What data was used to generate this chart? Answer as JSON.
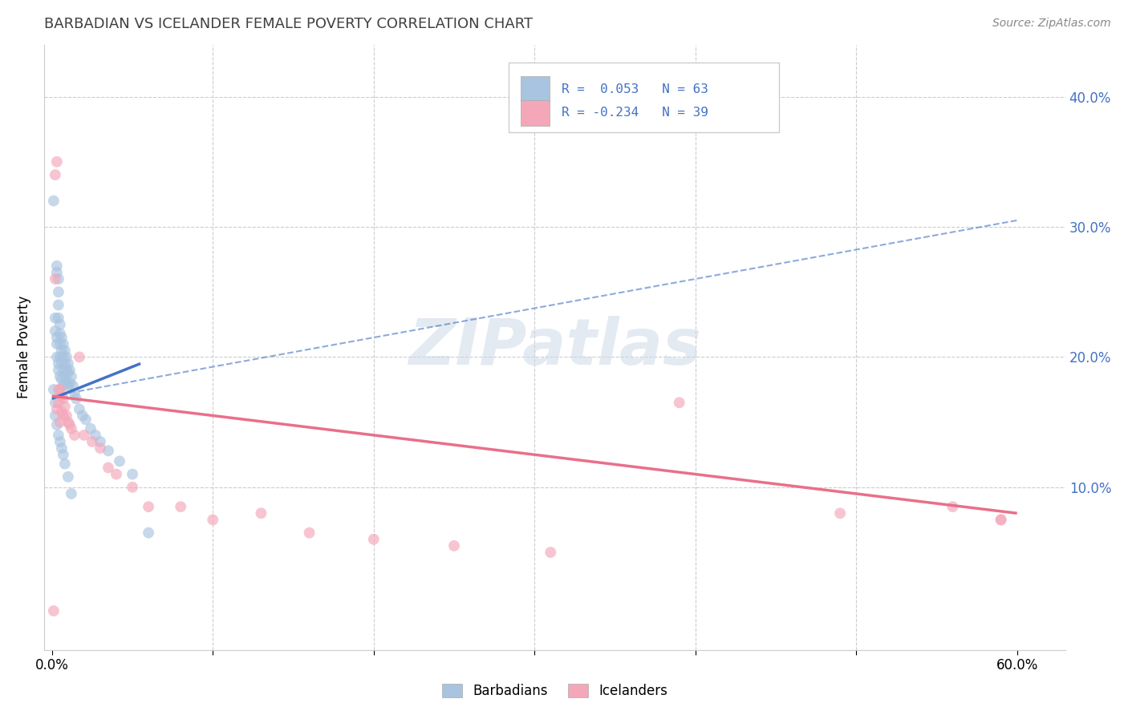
{
  "title": "BARBADIAN VS ICELANDER FEMALE POVERTY CORRELATION CHART",
  "source": "Source: ZipAtlas.com",
  "ylabel": "Female Poverty",
  "barbadian_color": "#a8c4e0",
  "icelander_color": "#f4a7b9",
  "barbadian_line_color": "#4472c4",
  "icelander_line_color": "#e8708a",
  "trend_dash_color": "#a8c4e0",
  "watermark_color": "#ccd9e8",
  "background_color": "#ffffff",
  "grid_color": "#cccccc",
  "title_color": "#404040",
  "axis_label_color": "#4472c4",
  "legend_label1": "Barbadians",
  "legend_label2": "Icelanders",
  "barbadian_x": [
    0.001,
    0.002,
    0.002,
    0.002,
    0.003,
    0.003,
    0.003,
    0.003,
    0.003,
    0.004,
    0.004,
    0.004,
    0.004,
    0.004,
    0.004,
    0.005,
    0.005,
    0.005,
    0.005,
    0.005,
    0.006,
    0.006,
    0.006,
    0.006,
    0.007,
    0.007,
    0.007,
    0.007,
    0.008,
    0.008,
    0.008,
    0.009,
    0.009,
    0.009,
    0.01,
    0.01,
    0.01,
    0.011,
    0.011,
    0.012,
    0.013,
    0.014,
    0.015,
    0.017,
    0.019,
    0.021,
    0.024,
    0.027,
    0.03,
    0.035,
    0.042,
    0.05,
    0.06,
    0.002,
    0.003,
    0.004,
    0.005,
    0.006,
    0.007,
    0.008,
    0.01,
    0.012,
    0.001
  ],
  "barbadian_y": [
    0.175,
    0.23,
    0.22,
    0.165,
    0.27,
    0.265,
    0.215,
    0.21,
    0.2,
    0.26,
    0.25,
    0.24,
    0.23,
    0.195,
    0.19,
    0.225,
    0.218,
    0.21,
    0.2,
    0.185,
    0.215,
    0.205,
    0.195,
    0.183,
    0.21,
    0.2,
    0.19,
    0.178,
    0.205,
    0.195,
    0.185,
    0.2,
    0.19,
    0.18,
    0.195,
    0.188,
    0.178,
    0.19,
    0.18,
    0.185,
    0.178,
    0.172,
    0.168,
    0.16,
    0.155,
    0.152,
    0.145,
    0.14,
    0.135,
    0.128,
    0.12,
    0.11,
    0.065,
    0.155,
    0.148,
    0.14,
    0.135,
    0.13,
    0.125,
    0.118,
    0.108,
    0.095,
    0.32
  ],
  "icelander_x": [
    0.001,
    0.002,
    0.003,
    0.003,
    0.004,
    0.004,
    0.005,
    0.005,
    0.006,
    0.006,
    0.007,
    0.007,
    0.008,
    0.009,
    0.01,
    0.011,
    0.012,
    0.014,
    0.017,
    0.02,
    0.025,
    0.03,
    0.035,
    0.04,
    0.05,
    0.06,
    0.08,
    0.1,
    0.13,
    0.16,
    0.2,
    0.25,
    0.31,
    0.39,
    0.49,
    0.56,
    0.59,
    0.002,
    0.59
  ],
  "icelander_y": [
    0.005,
    0.34,
    0.35,
    0.16,
    0.175,
    0.165,
    0.175,
    0.15,
    0.17,
    0.158,
    0.168,
    0.155,
    0.162,
    0.155,
    0.15,
    0.148,
    0.145,
    0.14,
    0.2,
    0.14,
    0.135,
    0.13,
    0.115,
    0.11,
    0.1,
    0.085,
    0.085,
    0.075,
    0.08,
    0.065,
    0.06,
    0.055,
    0.05,
    0.165,
    0.08,
    0.085,
    0.075,
    0.26,
    0.075
  ],
  "xlim": [
    -0.005,
    0.63
  ],
  "ylim": [
    -0.025,
    0.44
  ],
  "x_ticks": [
    0.0,
    0.1,
    0.2,
    0.3,
    0.4,
    0.5,
    0.6
  ],
  "x_tick_labels": [
    "0.0%",
    "",
    "",
    "",
    "",
    "",
    "60.0%"
  ],
  "y_ticks": [
    0.1,
    0.2,
    0.3,
    0.4
  ],
  "y_tick_labels_right": [
    "10.0%",
    "20.0%",
    "30.0%",
    "40.0%"
  ],
  "blue_trend_x": [
    0.0,
    0.055
  ],
  "blue_trend_y": [
    0.168,
    0.195
  ],
  "pink_trend_x": [
    0.0,
    0.6
  ],
  "pink_trend_y": [
    0.17,
    0.08
  ],
  "dash_trend_x": [
    0.0,
    0.6
  ],
  "dash_trend_y": [
    0.17,
    0.305
  ],
  "marker_size": 100,
  "marker_alpha": 0.65
}
